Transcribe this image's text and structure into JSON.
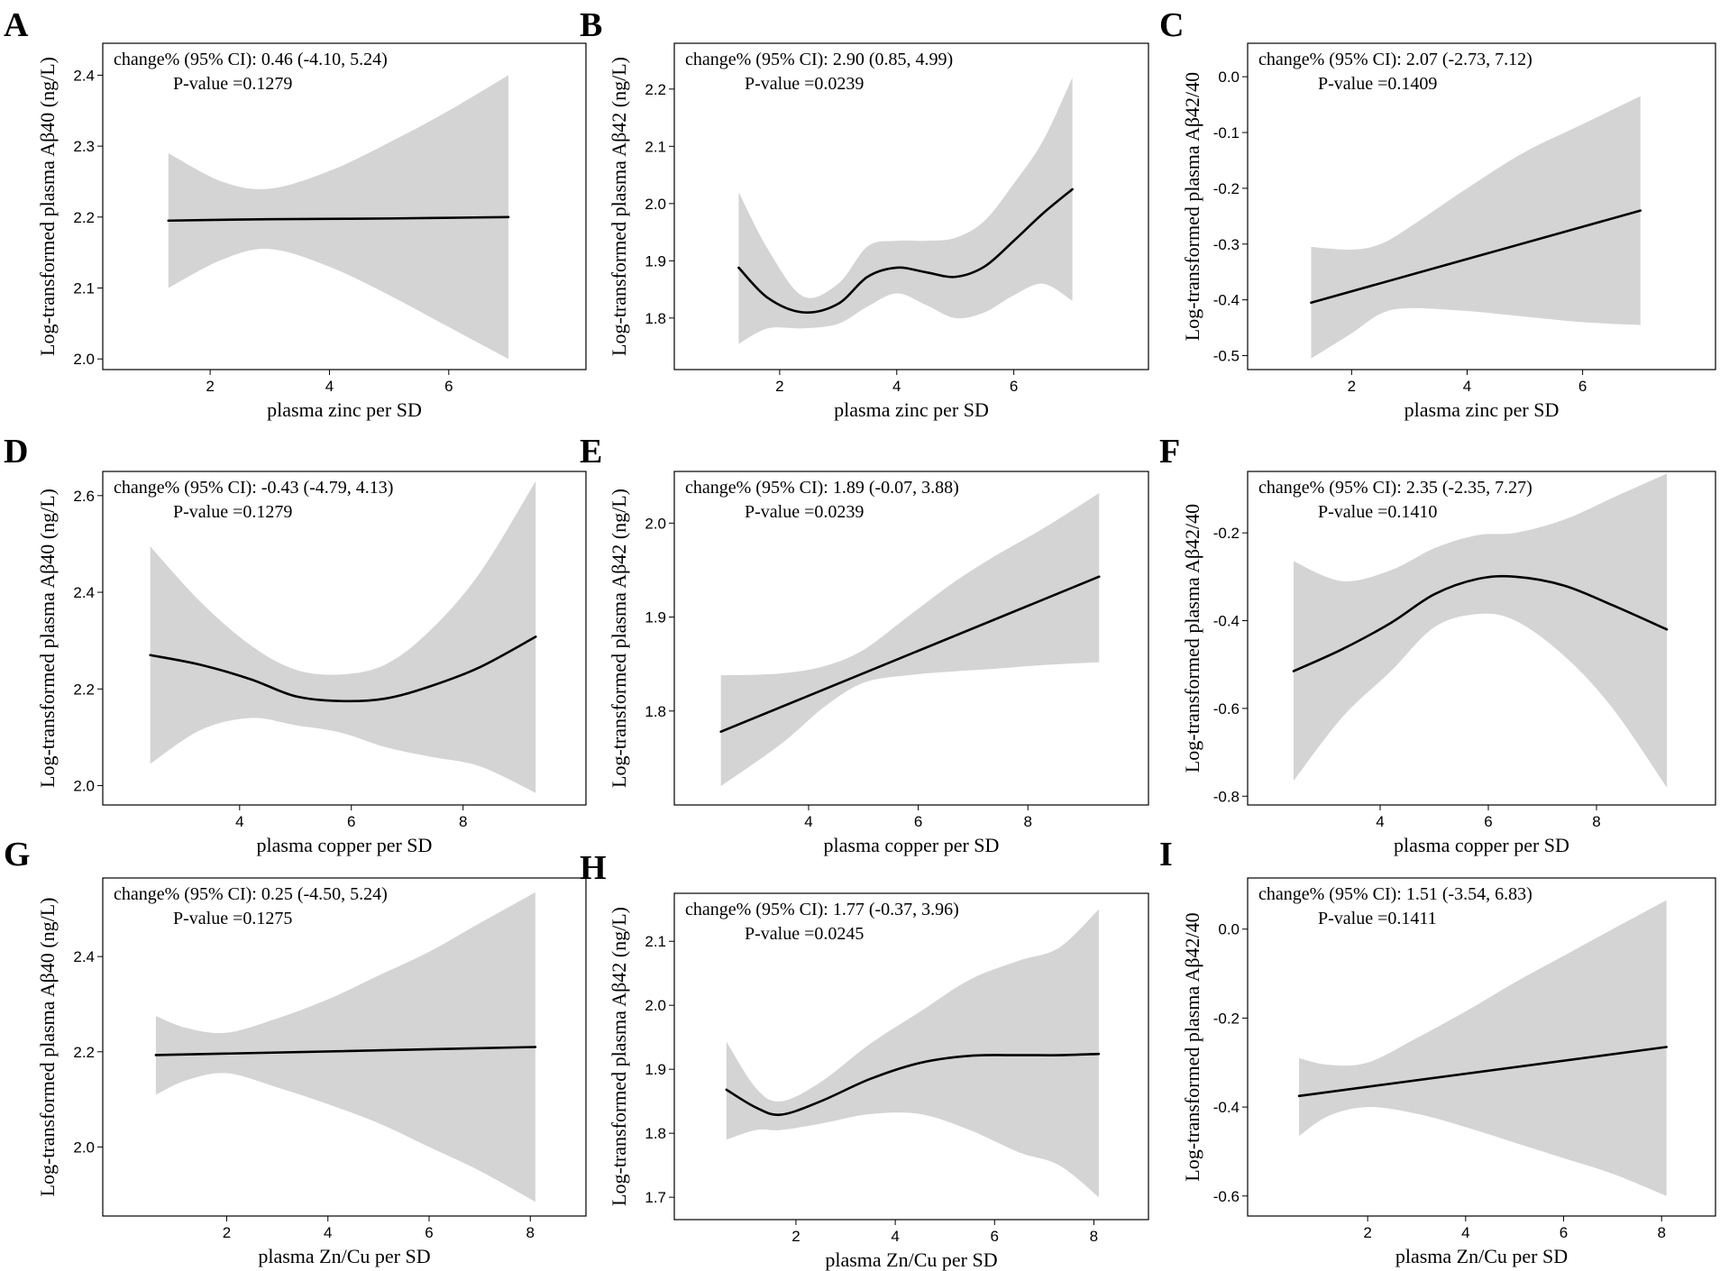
{
  "figure": {
    "background": "#ffffff",
    "band_color": "#d4d4d4",
    "line_color": "#000000"
  },
  "chart_data": [
    {
      "panel": "A",
      "type": "line",
      "xlabel": "plasma zinc per SD",
      "ylabel": "Log-transformed plasma Aβ40 (ng/L)",
      "annotation_line1": "change% (95% CI): 0.46 (-4.10, 5.24)",
      "annotation_line2": "P-value =0.1279",
      "xlim": [
        0.2,
        8.3
      ],
      "ylim": [
        1.985,
        2.445
      ],
      "xticks": [
        2,
        4,
        6
      ],
      "xtick_labels": [
        "2",
        "4",
        "6"
      ],
      "yticks": [
        2.0,
        2.1,
        2.2,
        2.3,
        2.4
      ],
      "ytick_labels": [
        "2.0",
        "2.1",
        "2.2",
        "2.3",
        "2.4"
      ],
      "fit": {
        "x": [
          1.3,
          3.0,
          5.0,
          7.0
        ],
        "y": [
          2.195,
          2.197,
          2.198,
          2.2
        ]
      },
      "ci_upper": {
        "x": [
          1.3,
          2.2,
          3.0,
          4.0,
          5.0,
          6.0,
          7.0
        ],
        "y": [
          2.29,
          2.25,
          2.24,
          2.265,
          2.305,
          2.35,
          2.4
        ]
      },
      "ci_lower": {
        "x": [
          1.3,
          2.2,
          3.0,
          4.0,
          5.0,
          6.0,
          7.0
        ],
        "y": [
          2.1,
          2.14,
          2.155,
          2.13,
          2.09,
          2.045,
          2.0
        ]
      }
    },
    {
      "panel": "B",
      "type": "line",
      "xlabel": "plasma zinc per SD",
      "ylabel": "Log-transformed plasma Aβ42 (ng/L)",
      "annotation_line1": "change% (95% CI): 2.90 (0.85, 4.99)",
      "annotation_line2": "P-value =0.0239",
      "xlim": [
        0.2,
        8.3
      ],
      "ylim": [
        1.71,
        2.28
      ],
      "xticks": [
        2,
        4,
        6
      ],
      "xtick_labels": [
        "2",
        "4",
        "6"
      ],
      "yticks": [
        1.8,
        1.9,
        2.0,
        2.1,
        2.2
      ],
      "ytick_labels": [
        "1.8",
        "1.9",
        "2.0",
        "2.1",
        "2.2"
      ],
      "fit": {
        "x": [
          1.3,
          1.8,
          2.4,
          3.0,
          3.5,
          4.0,
          4.5,
          5.0,
          5.5,
          6.0,
          6.5,
          7.0
        ],
        "y": [
          1.888,
          1.835,
          1.81,
          1.825,
          1.872,
          1.888,
          1.88,
          1.872,
          1.89,
          1.935,
          1.983,
          2.025
        ]
      },
      "ci_upper": {
        "x": [
          1.3,
          1.8,
          2.4,
          3.0,
          3.5,
          4.0,
          4.5,
          5.0,
          5.5,
          6.0,
          6.5,
          7.0
        ],
        "y": [
          2.02,
          1.92,
          1.838,
          1.86,
          1.925,
          1.935,
          1.935,
          1.94,
          1.97,
          2.035,
          2.11,
          2.22
        ]
      },
      "ci_lower": {
        "x": [
          1.3,
          1.8,
          2.4,
          3.0,
          3.5,
          4.0,
          4.5,
          5.0,
          5.5,
          6.0,
          6.5,
          7.0
        ],
        "y": [
          1.755,
          1.782,
          1.782,
          1.79,
          1.82,
          1.843,
          1.823,
          1.8,
          1.81,
          1.84,
          1.86,
          1.83
        ]
      }
    },
    {
      "panel": "C",
      "type": "line",
      "xlabel": "plasma zinc per SD",
      "ylabel": "Log-transformed plasma Aβ42/40",
      "annotation_line1": "change% (95% CI): 2.07 (-2.73, 7.12)",
      "annotation_line2": "P-value =0.1409",
      "xlim": [
        0.2,
        8.3
      ],
      "ylim": [
        -0.525,
        0.06
      ],
      "xticks": [
        2,
        4,
        6
      ],
      "xtick_labels": [
        "2",
        "4",
        "6"
      ],
      "yticks": [
        0.0,
        -0.1,
        -0.2,
        -0.3,
        -0.4,
        -0.5
      ],
      "ytick_labels": [
        "0.0",
        "-0.1",
        "-0.2",
        "-0.3",
        "-0.4",
        "-0.5"
      ],
      "fit": {
        "x": [
          1.3,
          7.0
        ],
        "y": [
          -0.405,
          -0.24
        ]
      },
      "ci_upper": {
        "x": [
          1.3,
          2.0,
          2.5,
          3.0,
          4.0,
          5.0,
          6.0,
          7.0
        ],
        "y": [
          -0.305,
          -0.31,
          -0.3,
          -0.27,
          -0.2,
          -0.135,
          -0.085,
          -0.035
        ]
      },
      "ci_lower": {
        "x": [
          1.3,
          2.0,
          2.5,
          3.0,
          4.0,
          5.0,
          6.0,
          7.0
        ],
        "y": [
          -0.505,
          -0.46,
          -0.425,
          -0.415,
          -0.42,
          -0.43,
          -0.44,
          -0.445
        ]
      }
    },
    {
      "panel": "D",
      "type": "line",
      "xlabel": "plasma copper per SD",
      "ylabel": "Log-transformed plasma Aβ40 (ng/L)",
      "annotation_line1": "change% (95% CI): -0.43 (-4.79, 4.13)",
      "annotation_line2": "P-value =0.1279",
      "xlim": [
        1.55,
        10.2
      ],
      "ylim": [
        1.96,
        2.65
      ],
      "xticks": [
        4,
        6,
        8
      ],
      "xtick_labels": [
        "4",
        "6",
        "8"
      ],
      "yticks": [
        2.0,
        2.2,
        2.4,
        2.6
      ],
      "ytick_labels": [
        "2.0",
        "2.2",
        "2.4",
        "2.6"
      ],
      "fit": {
        "x": [
          2.4,
          3.3,
          4.2,
          5.0,
          5.8,
          6.6,
          7.4,
          8.3,
          9.3
        ],
        "y": [
          2.27,
          2.25,
          2.22,
          2.185,
          2.175,
          2.18,
          2.205,
          2.245,
          2.308
        ]
      },
      "ci_upper": {
        "x": [
          2.4,
          3.3,
          4.2,
          5.0,
          5.8,
          6.6,
          7.4,
          8.3,
          9.3
        ],
        "y": [
          2.495,
          2.38,
          2.29,
          2.24,
          2.23,
          2.25,
          2.32,
          2.44,
          2.63
        ]
      },
      "ci_lower": {
        "x": [
          2.4,
          3.3,
          4.2,
          5.0,
          5.8,
          6.6,
          7.4,
          8.3,
          9.3
        ],
        "y": [
          2.045,
          2.115,
          2.14,
          2.125,
          2.11,
          2.08,
          2.06,
          2.04,
          1.985
        ]
      }
    },
    {
      "panel": "E",
      "type": "line",
      "xlabel": "plasma copper per SD",
      "ylabel": "Log-transformed plasma Aβ42 (ng/L)",
      "annotation_line1": "change% (95% CI): 1.89 (-0.07, 3.88)",
      "annotation_line2": "P-value =0.0239",
      "xlim": [
        1.55,
        10.2
      ],
      "ylim": [
        1.7,
        2.055
      ],
      "xticks": [
        4,
        6,
        8
      ],
      "xtick_labels": [
        "4",
        "6",
        "8"
      ],
      "yticks": [
        1.8,
        1.9,
        2.0
      ],
      "ytick_labels": [
        "1.8",
        "1.9",
        "2.0"
      ],
      "fit": {
        "x": [
          2.4,
          9.3
        ],
        "y": [
          1.778,
          1.943
        ]
      },
      "ci_upper": {
        "x": [
          2.4,
          3.5,
          4.3,
          5.0,
          5.8,
          6.6,
          7.4,
          8.3,
          9.3
        ],
        "y": [
          1.838,
          1.84,
          1.848,
          1.865,
          1.9,
          1.935,
          1.965,
          1.995,
          2.032
        ]
      },
      "ci_lower": {
        "x": [
          2.4,
          3.5,
          4.3,
          5.0,
          5.8,
          6.6,
          7.4,
          8.3,
          9.3
        ],
        "y": [
          1.72,
          1.765,
          1.805,
          1.83,
          1.838,
          1.842,
          1.845,
          1.849,
          1.852
        ]
      }
    },
    {
      "panel": "F",
      "type": "line",
      "xlabel": "plasma copper per SD",
      "ylabel": "Log-transformed plasma Aβ42/40",
      "annotation_line1": "change% (95% CI): 2.35 (-2.35, 7.27)",
      "annotation_line2": "P-value =0.1410",
      "xlim": [
        1.55,
        10.2
      ],
      "ylim": [
        -0.82,
        -0.06
      ],
      "xticks": [
        4,
        6,
        8
      ],
      "xtick_labels": [
        "4",
        "6",
        "8"
      ],
      "yticks": [
        -0.2,
        -0.4,
        -0.6,
        -0.8
      ],
      "ytick_labels": [
        "-0.2",
        "-0.4",
        "-0.6",
        "-0.8"
      ],
      "fit": {
        "x": [
          2.4,
          3.3,
          4.2,
          5.0,
          5.8,
          6.5,
          7.4,
          8.3,
          9.3
        ],
        "y": [
          -0.515,
          -0.465,
          -0.405,
          -0.34,
          -0.305,
          -0.3,
          -0.32,
          -0.365,
          -0.42
        ]
      },
      "ci_upper": {
        "x": [
          2.4,
          3.3,
          4.2,
          5.0,
          5.8,
          6.5,
          7.4,
          8.3,
          9.3
        ],
        "y": [
          -0.265,
          -0.31,
          -0.285,
          -0.235,
          -0.205,
          -0.2,
          -0.17,
          -0.12,
          -0.065
        ]
      },
      "ci_lower": {
        "x": [
          2.4,
          3.3,
          4.2,
          5.0,
          5.8,
          6.5,
          7.4,
          8.3,
          9.3
        ],
        "y": [
          -0.765,
          -0.62,
          -0.515,
          -0.415,
          -0.385,
          -0.4,
          -0.48,
          -0.6,
          -0.78
        ]
      }
    },
    {
      "panel": "G",
      "type": "line",
      "xlabel": "plasma Zn/Cu per SD",
      "ylabel": "Log-transformed plasma Aβ40 (ng/L)",
      "annotation_line1": "change% (95% CI): 0.25 (-4.50, 5.24)",
      "annotation_line2": "P-value =0.1275",
      "xlim": [
        -0.45,
        9.1
      ],
      "ylim": [
        1.855,
        2.565
      ],
      "xticks": [
        2,
        4,
        6,
        8
      ],
      "xtick_labels": [
        "2",
        "4",
        "6",
        "8"
      ],
      "yticks": [
        2.0,
        2.2,
        2.4
      ],
      "ytick_labels": [
        "2.0",
        "2.2",
        "2.4"
      ],
      "fit": {
        "x": [
          0.6,
          8.1
        ],
        "y": [
          2.193,
          2.21
        ]
      },
      "ci_upper": {
        "x": [
          0.6,
          1.2,
          2.0,
          3.0,
          4.0,
          5.0,
          6.0,
          7.0,
          8.1
        ],
        "y": [
          2.275,
          2.25,
          2.24,
          2.27,
          2.31,
          2.36,
          2.41,
          2.47,
          2.535
        ]
      },
      "ci_lower": {
        "x": [
          0.6,
          1.2,
          2.0,
          3.0,
          4.0,
          5.0,
          6.0,
          7.0,
          8.1
        ],
        "y": [
          2.11,
          2.14,
          2.155,
          2.125,
          2.09,
          2.05,
          2.0,
          1.95,
          1.885
        ]
      }
    },
    {
      "panel": "H",
      "type": "line",
      "xlabel": "plasma Zn/Cu per SD",
      "ylabel": "Log-transformed plasma Aβ42 (ng/L)",
      "annotation_line1": "change% (95% CI): 1.77 (-0.37, 3.96)",
      "annotation_line2": "P-value =0.0245",
      "xlim": [
        -0.45,
        9.1
      ],
      "ylim": [
        1.665,
        2.175
      ],
      "xticks": [
        2,
        4,
        6,
        8
      ],
      "xtick_labels": [
        "2",
        "4",
        "6",
        "8"
      ],
      "yticks": [
        1.7,
        1.8,
        1.9,
        2.0,
        2.1
      ],
      "ytick_labels": [
        "1.7",
        "1.8",
        "1.9",
        "2.0",
        "2.1"
      ],
      "fit": {
        "x": [
          0.6,
          1.2,
          1.7,
          2.5,
          3.5,
          4.5,
          5.5,
          6.5,
          7.3,
          8.1
        ],
        "y": [
          1.868,
          1.84,
          1.829,
          1.85,
          1.885,
          1.91,
          1.921,
          1.922,
          1.922,
          1.924
        ]
      },
      "ci_upper": {
        "x": [
          0.6,
          1.2,
          1.7,
          2.5,
          3.5,
          4.5,
          5.5,
          6.5,
          7.3,
          8.1
        ],
        "y": [
          1.943,
          1.87,
          1.85,
          1.88,
          1.94,
          1.99,
          2.04,
          2.07,
          2.09,
          2.15
        ]
      },
      "ci_lower": {
        "x": [
          0.6,
          1.2,
          1.7,
          2.5,
          3.5,
          4.5,
          5.5,
          6.5,
          7.3,
          8.1
        ],
        "y": [
          1.79,
          1.805,
          1.805,
          1.815,
          1.83,
          1.83,
          1.805,
          1.77,
          1.75,
          1.7
        ]
      }
    },
    {
      "panel": "I",
      "type": "line",
      "xlabel": "plasma Zn/Cu per SD",
      "ylabel": "Log-transformed plasma Aβ42/40",
      "annotation_line1": "change% (95% CI): 1.51 (-3.54, 6.83)",
      "annotation_line2": "P-value =0.1411",
      "xlim": [
        -0.45,
        9.1
      ],
      "ylim": [
        -0.645,
        0.115
      ],
      "xticks": [
        2,
        4,
        6,
        8
      ],
      "xtick_labels": [
        "2",
        "4",
        "6",
        "8"
      ],
      "yticks": [
        0.0,
        -0.2,
        -0.4,
        -0.6
      ],
      "ytick_labels": [
        "0.0",
        "-0.2",
        "-0.4",
        "-0.6"
      ],
      "fit": {
        "x": [
          0.6,
          8.1
        ],
        "y": [
          -0.375,
          -0.265
        ]
      },
      "ci_upper": {
        "x": [
          0.6,
          1.2,
          2.0,
          3.0,
          4.0,
          5.0,
          6.0,
          7.0,
          8.1
        ],
        "y": [
          -0.29,
          -0.305,
          -0.3,
          -0.245,
          -0.185,
          -0.12,
          -0.06,
          0.0,
          0.065
        ]
      },
      "ci_lower": {
        "x": [
          0.6,
          1.2,
          2.0,
          3.0,
          4.0,
          5.0,
          6.0,
          7.0,
          8.1
        ],
        "y": [
          -0.465,
          -0.42,
          -0.4,
          -0.415,
          -0.445,
          -0.48,
          -0.515,
          -0.55,
          -0.6
        ]
      }
    }
  ]
}
